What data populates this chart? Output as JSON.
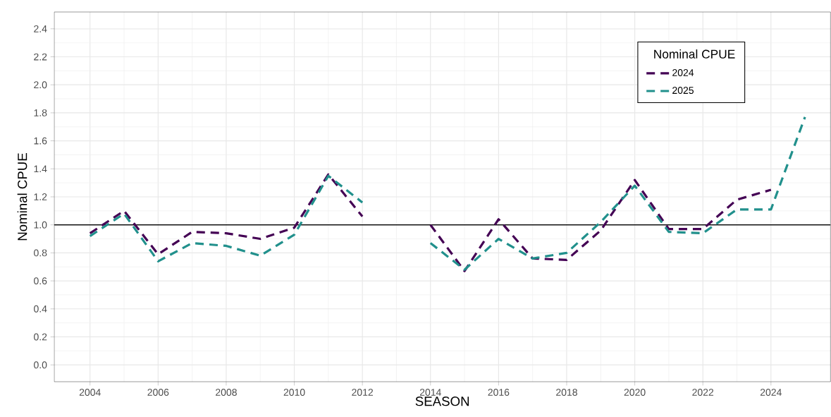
{
  "chart_data": {
    "type": "line",
    "xlabel": "SEASON",
    "ylabel": "Nominal CPUE",
    "legend_title": "Nominal CPUE",
    "x": [
      2004,
      2005,
      2006,
      2007,
      2008,
      2009,
      2010,
      2011,
      2012,
      2013,
      2014,
      2015,
      2016,
      2017,
      2018,
      2019,
      2020,
      2021,
      2022,
      2023,
      2024,
      2025
    ],
    "series": [
      {
        "name": "2024",
        "color": "#440154",
        "values": [
          0.94,
          1.1,
          0.79,
          0.95,
          0.94,
          0.9,
          0.98,
          1.36,
          1.06,
          null,
          1.0,
          0.67,
          1.04,
          0.76,
          0.75,
          0.96,
          1.32,
          0.97,
          0.97,
          1.18,
          1.25,
          null
        ]
      },
      {
        "name": "2025",
        "color": "#21908c",
        "values": [
          0.92,
          1.08,
          0.74,
          0.87,
          0.85,
          0.78,
          0.93,
          1.35,
          1.16,
          null,
          0.87,
          0.68,
          0.9,
          0.76,
          0.8,
          1.02,
          1.28,
          0.95,
          0.94,
          1.11,
          1.11,
          1.77
        ]
      }
    ],
    "xlim": [
      2002.95,
      2025.75
    ],
    "ylim": [
      -0.12,
      2.52
    ],
    "xticks": [
      2004,
      2006,
      2008,
      2010,
      2012,
      2014,
      2016,
      2018,
      2020,
      2022,
      2024
    ],
    "yticks": [
      {
        "value": 0,
        "label": "0.0"
      },
      {
        "value": 0.2,
        "label": "0.2"
      },
      {
        "value": 0.4,
        "label": "0.4"
      },
      {
        "value": 0.6,
        "label": "0.6"
      },
      {
        "value": 0.8,
        "label": "0.8"
      },
      {
        "value": 1,
        "label": "1.0"
      },
      {
        "value": 1.2,
        "label": "1.2"
      },
      {
        "value": 1.4,
        "label": "1.4"
      },
      {
        "value": 1.6,
        "label": "1.6"
      },
      {
        "value": 1.8,
        "label": "1.8"
      },
      {
        "value": 2,
        "label": "2.0"
      },
      {
        "value": 2.2,
        "label": "2.2"
      },
      {
        "value": 2.4,
        "label": "2.4"
      }
    ],
    "ref_lines": [
      {
        "axis": "y",
        "value": 1,
        "color": "#000000",
        "line_style": "solid"
      }
    ],
    "grid": true,
    "legend": "top right",
    "line_style": "dashed",
    "marker": "none"
  }
}
